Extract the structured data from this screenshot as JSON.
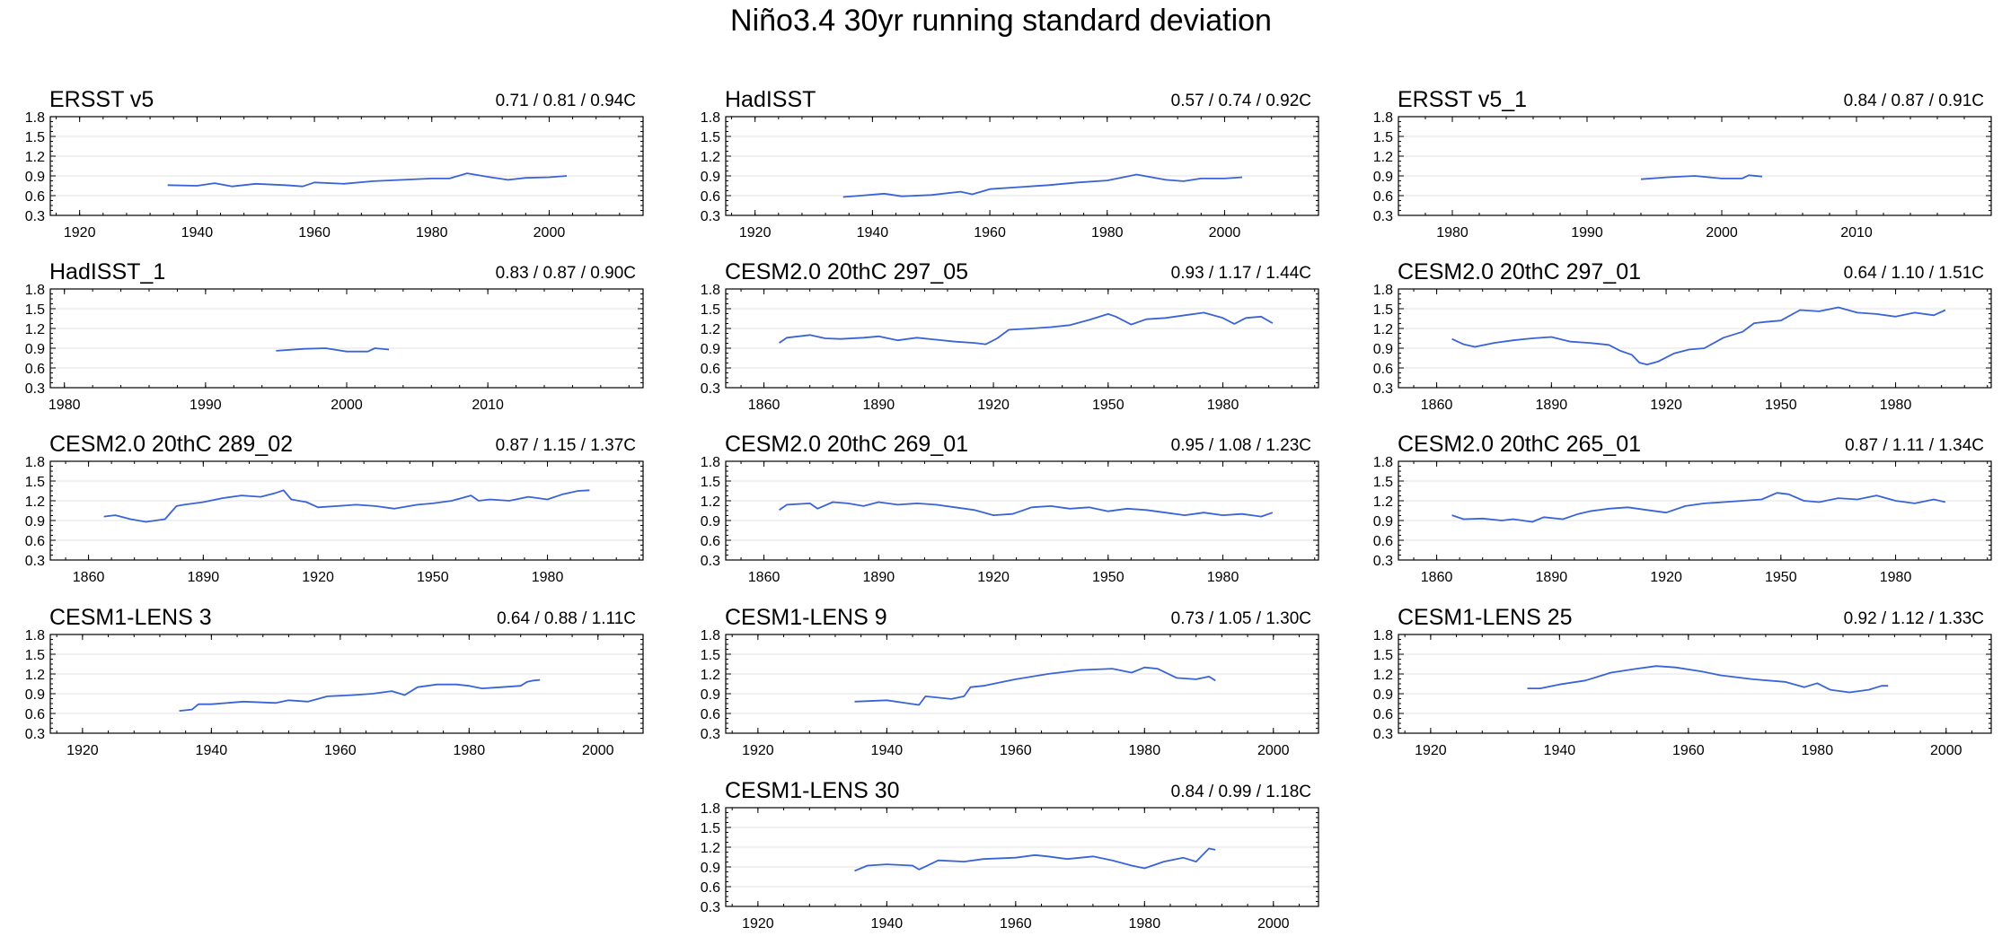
{
  "page_title": "Niño3.4 30yr running standard deviation",
  "chart_data": [
    {
      "type": "line",
      "title": "ERSST v5",
      "stats": "0.71 / 0.81 / 0.94C",
      "xlim": [
        1915,
        2016
      ],
      "xticks": [
        1920,
        1940,
        1960,
        1980,
        2000
      ],
      "ylim": [
        0.3,
        1.8
      ],
      "yticks": [
        "0.3",
        "0.6",
        "0.9",
        "1.2",
        "1.5",
        "1.8"
      ],
      "x": [
        1935,
        1940,
        1943,
        1946,
        1950,
        1955,
        1958,
        1960,
        1965,
        1970,
        1975,
        1980,
        1983,
        1986,
        1990,
        1993,
        1996,
        2000,
        2003
      ],
      "y": [
        0.76,
        0.75,
        0.79,
        0.74,
        0.78,
        0.76,
        0.74,
        0.8,
        0.78,
        0.82,
        0.84,
        0.86,
        0.86,
        0.94,
        0.88,
        0.84,
        0.87,
        0.88,
        0.9
      ]
    },
    {
      "type": "line",
      "title": "HadISST",
      "stats": "0.57 / 0.74 / 0.92C",
      "xlim": [
        1915,
        2016
      ],
      "xticks": [
        1920,
        1940,
        1960,
        1980,
        2000
      ],
      "ylim": [
        0.3,
        1.8
      ],
      "yticks": [
        "0.3",
        "0.6",
        "0.9",
        "1.2",
        "1.5",
        "1.8"
      ],
      "x": [
        1935,
        1938,
        1942,
        1945,
        1950,
        1955,
        1957,
        1960,
        1965,
        1970,
        1975,
        1980,
        1985,
        1990,
        1993,
        1996,
        2000,
        2003
      ],
      "y": [
        0.58,
        0.6,
        0.63,
        0.59,
        0.61,
        0.66,
        0.62,
        0.7,
        0.73,
        0.76,
        0.8,
        0.83,
        0.92,
        0.84,
        0.82,
        0.86,
        0.86,
        0.88
      ]
    },
    {
      "type": "line",
      "title": "ERSST v5_1",
      "stats": "0.84 / 0.87 / 0.91C",
      "xlim": [
        1976,
        2020
      ],
      "xticks": [
        1980,
        1990,
        2000,
        2010
      ],
      "ylim": [
        0.3,
        1.8
      ],
      "yticks": [
        "0.3",
        "0.6",
        "0.9",
        "1.2",
        "1.5",
        "1.8"
      ],
      "x": [
        1994,
        1996,
        1998,
        2000,
        2001.5,
        2002,
        2003
      ],
      "y": [
        0.85,
        0.88,
        0.9,
        0.86,
        0.86,
        0.91,
        0.89
      ]
    },
    {
      "type": "line",
      "title": "HadISST_1",
      "stats": "0.83 / 0.87 / 0.90C",
      "xlim": [
        1979,
        2021
      ],
      "xticks": [
        1980,
        1990,
        2000,
        2010
      ],
      "ylim": [
        0.3,
        1.8
      ],
      "yticks": [
        "0.3",
        "0.6",
        "0.9",
        "1.2",
        "1.5",
        "1.8"
      ],
      "x": [
        1995,
        1997,
        1998.5,
        2000,
        2001.5,
        2002,
        2003
      ],
      "y": [
        0.86,
        0.89,
        0.9,
        0.85,
        0.85,
        0.9,
        0.88
      ]
    },
    {
      "type": "line",
      "title": "CESM2.0 20thC 297_05",
      "stats": "0.93 / 1.17 / 1.44C",
      "xlim": [
        1850,
        2005
      ],
      "xticks": [
        1860,
        1890,
        1920,
        1950,
        1980
      ],
      "ylim": [
        0.3,
        1.8
      ],
      "yticks": [
        "0.3",
        "0.6",
        "0.9",
        "1.2",
        "1.5",
        "1.8"
      ],
      "x": [
        1864,
        1866,
        1872,
        1876,
        1880,
        1886,
        1890,
        1895,
        1900,
        1905,
        1910,
        1915,
        1918,
        1921,
        1924,
        1930,
        1935,
        1940,
        1945,
        1950,
        1952,
        1956,
        1960,
        1965,
        1970,
        1975,
        1980,
        1983,
        1986,
        1990,
        1993
      ],
      "y": [
        0.98,
        1.06,
        1.1,
        1.05,
        1.04,
        1.06,
        1.08,
        1.02,
        1.06,
        1.03,
        1.0,
        0.98,
        0.96,
        1.05,
        1.18,
        1.2,
        1.22,
        1.25,
        1.33,
        1.42,
        1.38,
        1.26,
        1.34,
        1.36,
        1.4,
        1.44,
        1.36,
        1.27,
        1.36,
        1.38,
        1.28
      ]
    },
    {
      "type": "line",
      "title": "CESM2.0 20thC 297_01",
      "stats": "0.64 / 1.10 / 1.51C",
      "xlim": [
        1850,
        2005
      ],
      "xticks": [
        1860,
        1890,
        1920,
        1950,
        1980
      ],
      "ylim": [
        0.3,
        1.8
      ],
      "yticks": [
        "0.3",
        "0.6",
        "0.9",
        "1.2",
        "1.5",
        "1.8"
      ],
      "x": [
        1864,
        1867,
        1870,
        1875,
        1880,
        1885,
        1890,
        1895,
        1900,
        1905,
        1908,
        1911,
        1913,
        1915,
        1918,
        1922,
        1926,
        1930,
        1935,
        1940,
        1943,
        1946,
        1950,
        1955,
        1960,
        1965,
        1970,
        1975,
        1980,
        1985,
        1990,
        1993
      ],
      "y": [
        1.04,
        0.96,
        0.92,
        0.98,
        1.02,
        1.05,
        1.07,
        1.0,
        0.98,
        0.95,
        0.86,
        0.8,
        0.68,
        0.65,
        0.7,
        0.82,
        0.88,
        0.9,
        1.06,
        1.15,
        1.28,
        1.3,
        1.32,
        1.48,
        1.46,
        1.52,
        1.44,
        1.42,
        1.38,
        1.44,
        1.4,
        1.48
      ]
    },
    {
      "type": "line",
      "title": "CESM2.0 20thC 289_02",
      "stats": "0.87 / 1.15 / 1.37C",
      "xlim": [
        1850,
        2005
      ],
      "xticks": [
        1860,
        1890,
        1920,
        1950,
        1980
      ],
      "ylim": [
        0.3,
        1.8
      ],
      "yticks": [
        "0.3",
        "0.6",
        "0.9",
        "1.2",
        "1.5",
        "1.8"
      ],
      "x": [
        1864,
        1867,
        1871,
        1875,
        1880,
        1883,
        1885,
        1890,
        1895,
        1900,
        1905,
        1909,
        1911,
        1913,
        1917,
        1920,
        1925,
        1930,
        1935,
        1940,
        1942,
        1946,
        1950,
        1955,
        1960,
        1962,
        1965,
        1970,
        1975,
        1980,
        1984,
        1988,
        1991
      ],
      "y": [
        0.96,
        0.98,
        0.92,
        0.88,
        0.92,
        1.12,
        1.14,
        1.18,
        1.24,
        1.28,
        1.26,
        1.32,
        1.36,
        1.22,
        1.18,
        1.1,
        1.12,
        1.14,
        1.12,
        1.08,
        1.1,
        1.14,
        1.16,
        1.2,
        1.28,
        1.2,
        1.22,
        1.2,
        1.26,
        1.22,
        1.3,
        1.35,
        1.36
      ]
    },
    {
      "type": "line",
      "title": "CESM2.0 20thC 269_01",
      "stats": "0.95 / 1.08 / 1.23C",
      "xlim": [
        1850,
        2005
      ],
      "xticks": [
        1860,
        1890,
        1920,
        1950,
        1980
      ],
      "ylim": [
        0.3,
        1.8
      ],
      "yticks": [
        "0.3",
        "0.6",
        "0.9",
        "1.2",
        "1.5",
        "1.8"
      ],
      "x": [
        1864,
        1866,
        1872,
        1874,
        1878,
        1882,
        1886,
        1890,
        1895,
        1900,
        1905,
        1910,
        1915,
        1920,
        1925,
        1930,
        1935,
        1940,
        1945,
        1950,
        1955,
        1960,
        1965,
        1970,
        1975,
        1980,
        1985,
        1990,
        1993
      ],
      "y": [
        1.06,
        1.14,
        1.16,
        1.08,
        1.18,
        1.16,
        1.12,
        1.18,
        1.14,
        1.16,
        1.14,
        1.1,
        1.06,
        0.98,
        1.0,
        1.1,
        1.12,
        1.08,
        1.1,
        1.04,
        1.08,
        1.06,
        1.02,
        0.98,
        1.02,
        0.98,
        1.0,
        0.96,
        1.02
      ]
    },
    {
      "type": "line",
      "title": "CESM2.0 20thC 265_01",
      "stats": "0.87 / 1.11 / 1.34C",
      "xlim": [
        1850,
        2005
      ],
      "xticks": [
        1860,
        1890,
        1920,
        1950,
        1980
      ],
      "ylim": [
        0.3,
        1.8
      ],
      "yticks": [
        "0.3",
        "0.6",
        "0.9",
        "1.2",
        "1.5",
        "1.8"
      ],
      "x": [
        1864,
        1867,
        1872,
        1877,
        1880,
        1885,
        1888,
        1893,
        1897,
        1900,
        1905,
        1910,
        1915,
        1920,
        1925,
        1930,
        1935,
        1940,
        1945,
        1949,
        1952,
        1956,
        1960,
        1965,
        1970,
        1975,
        1980,
        1985,
        1990,
        1993
      ],
      "y": [
        0.98,
        0.92,
        0.93,
        0.9,
        0.92,
        0.88,
        0.95,
        0.92,
        1.0,
        1.04,
        1.08,
        1.1,
        1.06,
        1.02,
        1.12,
        1.16,
        1.18,
        1.2,
        1.22,
        1.32,
        1.3,
        1.2,
        1.18,
        1.24,
        1.22,
        1.28,
        1.2,
        1.16,
        1.22,
        1.18
      ]
    },
    {
      "type": "line",
      "title": "CESM1-LENS 3",
      "stats": "0.64 / 0.88 / 1.11C",
      "xlim": [
        1915,
        2007
      ],
      "xticks": [
        1920,
        1940,
        1960,
        1980,
        2000
      ],
      "ylim": [
        0.3,
        1.8
      ],
      "yticks": [
        "0.3",
        "0.6",
        "0.9",
        "1.2",
        "1.5",
        "1.8"
      ],
      "x": [
        1935,
        1937,
        1938,
        1940,
        1945,
        1950,
        1952,
        1955,
        1958,
        1962,
        1965,
        1968,
        1970,
        1972,
        1975,
        1978,
        1980,
        1982,
        1985,
        1988,
        1989,
        1990,
        1991
      ],
      "y": [
        0.64,
        0.66,
        0.74,
        0.74,
        0.78,
        0.76,
        0.8,
        0.78,
        0.86,
        0.88,
        0.9,
        0.94,
        0.88,
        1.0,
        1.04,
        1.04,
        1.02,
        0.98,
        1.0,
        1.02,
        1.08,
        1.1,
        1.11
      ]
    },
    {
      "type": "line",
      "title": "CESM1-LENS 9",
      "stats": "0.73 / 1.05 / 1.30C",
      "xlim": [
        1915,
        2007
      ],
      "xticks": [
        1920,
        1940,
        1960,
        1980,
        2000
      ],
      "ylim": [
        0.3,
        1.8
      ],
      "yticks": [
        "0.3",
        "0.6",
        "0.9",
        "1.2",
        "1.5",
        "1.8"
      ],
      "x": [
        1935,
        1940,
        1945,
        1946,
        1950,
        1952,
        1953,
        1955,
        1960,
        1965,
        1970,
        1975,
        1978,
        1980,
        1982,
        1985,
        1988,
        1990,
        1991
      ],
      "y": [
        0.78,
        0.8,
        0.73,
        0.86,
        0.82,
        0.86,
        1.0,
        1.02,
        1.12,
        1.2,
        1.26,
        1.28,
        1.22,
        1.3,
        1.28,
        1.14,
        1.12,
        1.16,
        1.1
      ]
    },
    {
      "type": "line",
      "title": "CESM1-LENS 25",
      "stats": "0.92 / 1.12 / 1.33C",
      "xlim": [
        1915,
        2007
      ],
      "xticks": [
        1920,
        1940,
        1960,
        1980,
        2000
      ],
      "ylim": [
        0.3,
        1.8
      ],
      "yticks": [
        "0.3",
        "0.6",
        "0.9",
        "1.2",
        "1.5",
        "1.8"
      ],
      "x": [
        1935,
        1937,
        1940,
        1944,
        1948,
        1952,
        1955,
        1958,
        1962,
        1965,
        1970,
        1975,
        1978,
        1980,
        1982,
        1985,
        1988,
        1990,
        1991
      ],
      "y": [
        0.98,
        0.98,
        1.04,
        1.1,
        1.22,
        1.28,
        1.32,
        1.3,
        1.24,
        1.18,
        1.12,
        1.08,
        1.0,
        1.06,
        0.96,
        0.92,
        0.96,
        1.02,
        1.02
      ]
    },
    {
      "type": "line",
      "title": "CESM1-LENS 30",
      "stats": "0.84 / 0.99 / 1.18C",
      "xlim": [
        1915,
        2007
      ],
      "xticks": [
        1920,
        1940,
        1960,
        1980,
        2000
      ],
      "ylim": [
        0.3,
        1.8
      ],
      "yticks": [
        "0.3",
        "0.6",
        "0.9",
        "1.2",
        "1.5",
        "1.8"
      ],
      "x": [
        1935,
        1937,
        1940,
        1944,
        1945,
        1948,
        1952,
        1955,
        1960,
        1963,
        1965,
        1968,
        1972,
        1975,
        1978,
        1980,
        1983,
        1986,
        1988,
        1990,
        1991
      ],
      "y": [
        0.84,
        0.92,
        0.94,
        0.92,
        0.86,
        1.0,
        0.98,
        1.02,
        1.04,
        1.08,
        1.06,
        1.02,
        1.06,
        1.0,
        0.92,
        0.88,
        0.98,
        1.04,
        0.98,
        1.18,
        1.16
      ]
    }
  ]
}
